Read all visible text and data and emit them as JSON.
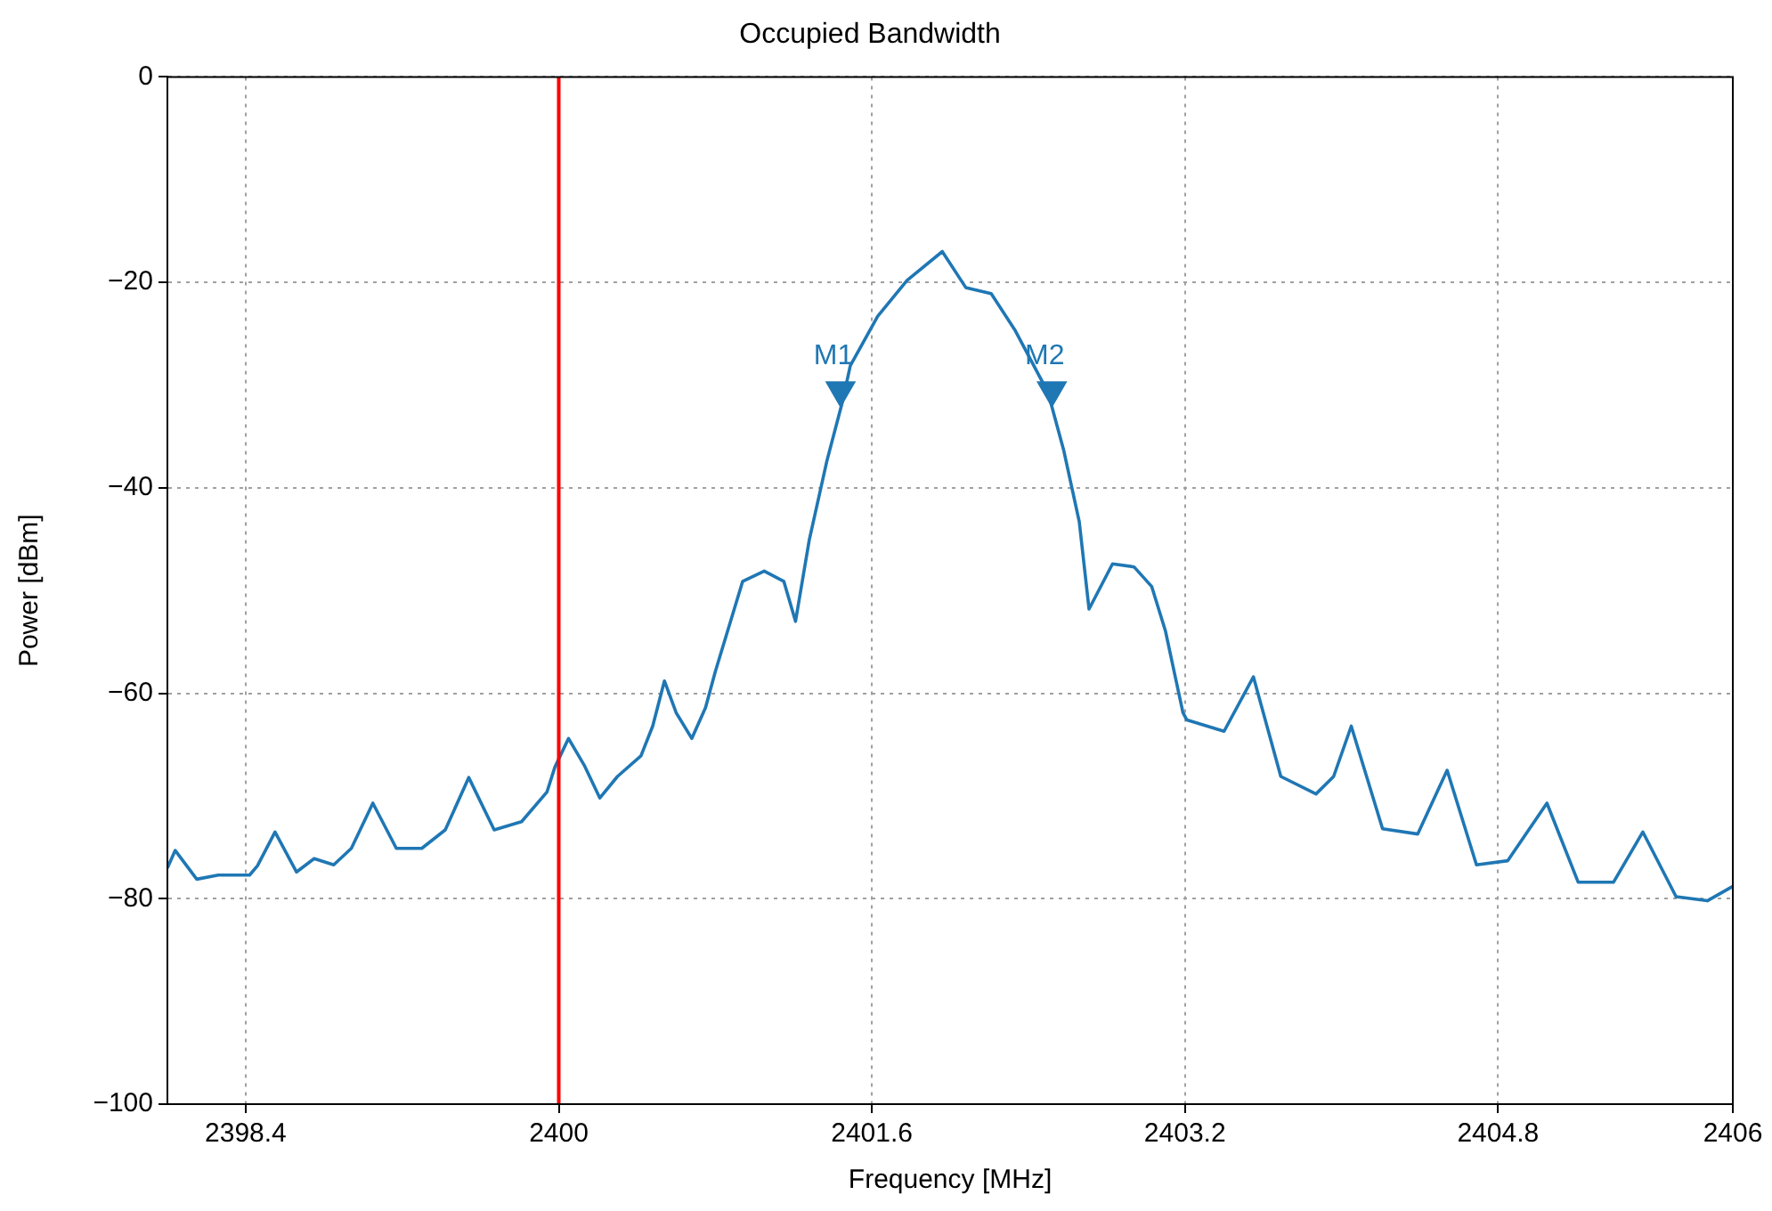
{
  "chart_data": {
    "type": "line",
    "title": "Occupied Bandwidth",
    "xlabel": "Frequency [MHz]",
    "ylabel": "Power [dBm]",
    "xlim": [
      2398,
      2406
    ],
    "xticks": [
      2398.4,
      2400,
      2401.6,
      2403.2,
      2404.8,
      2406
    ],
    "ylim": [
      -100,
      0
    ],
    "yticks": [
      {
        "value": -100,
        "label": "−100"
      },
      {
        "value": -80,
        "label": "−80"
      },
      {
        "value": -60,
        "label": "−60"
      },
      {
        "value": -40,
        "label": "−40"
      },
      {
        "value": -20,
        "label": "−20"
      },
      0
    ],
    "grid": true,
    "legend": false,
    "marker": "none",
    "line_style": "solid",
    "series": [
      {
        "color": "#1f77b4",
        "x": [
          2398.0,
          2398.04,
          2398.15,
          2398.26,
          2398.42,
          2398.46,
          2398.55,
          2398.66,
          2398.75,
          2398.85,
          2398.94,
          2399.05,
          2399.17,
          2399.3,
          2399.42,
          2399.54,
          2399.67,
          2399.81,
          2399.94,
          2399.98,
          2400.05,
          2400.13,
          2400.21,
          2400.3,
          2400.42,
          2400.48,
          2400.54,
          2400.6,
          2400.68,
          2400.75,
          2400.8,
          2400.94,
          2401.05,
          2401.15,
          2401.21,
          2401.28,
          2401.37,
          2401.45,
          2401.49,
          2401.63,
          2401.78,
          2401.96,
          2402.08,
          2402.21,
          2402.33,
          2402.5,
          2402.58,
          2402.66,
          2402.71,
          2402.83,
          2402.94,
          2403.03,
          2403.1,
          2403.19,
          2403.21,
          2403.4,
          2403.55,
          2403.69,
          2403.87,
          2403.96,
          2404.05,
          2404.21,
          2404.39,
          2404.54,
          2404.69,
          2404.85,
          2405.05,
          2405.21,
          2405.39,
          2405.54,
          2405.71,
          2405.87,
          2406.0
        ],
        "values": [
          -77,
          -75.3,
          -78.1,
          -77.7,
          -77.7,
          -76.8,
          -73.5,
          -77.4,
          -76.1,
          -76.7,
          -75.1,
          -70.7,
          -75.1,
          -75.1,
          -73.3,
          -68.2,
          -73.3,
          -72.5,
          -69.6,
          -67.2,
          -64.4,
          -67,
          -70.2,
          -68.1,
          -66.1,
          -63.2,
          -58.8,
          -61.9,
          -64.4,
          -61.4,
          -57.9,
          -49.1,
          -48.1,
          -49.1,
          -53,
          -45.1,
          -37.4,
          -31.6,
          -28.1,
          -23.3,
          -19.8,
          -17,
          -20.5,
          -21.1,
          -24.6,
          -30.7,
          -36.3,
          -43.3,
          -51.8,
          -47.4,
          -47.7,
          -49.6,
          -53.9,
          -61.9,
          -62.6,
          -63.7,
          -58.4,
          -68.1,
          -69.8,
          -68.1,
          -63.2,
          -73.2,
          -73.7,
          -67.5,
          -76.7,
          -76.3,
          -70.7,
          -78.4,
          -78.4,
          -73.5,
          -79.8,
          -80.2,
          -78.8
        ]
      },
      {
        "type": "scatter",
        "color": "#1f77b4",
        "marker": "triangle",
        "x": [
          2401.44,
          2402.52
        ],
        "values": [
          -30.5,
          -30.5
        ]
      }
    ],
    "ref_lines": [
      {
        "axis": "x",
        "value": 2400,
        "color": "#ff0000",
        "line_style": "solid"
      }
    ],
    "annotations": [
      {
        "text": "M1",
        "x": 2401.44,
        "y": -30.5
      },
      {
        "text": "M2",
        "x": 2402.52,
        "y": -30.5
      }
    ]
  }
}
